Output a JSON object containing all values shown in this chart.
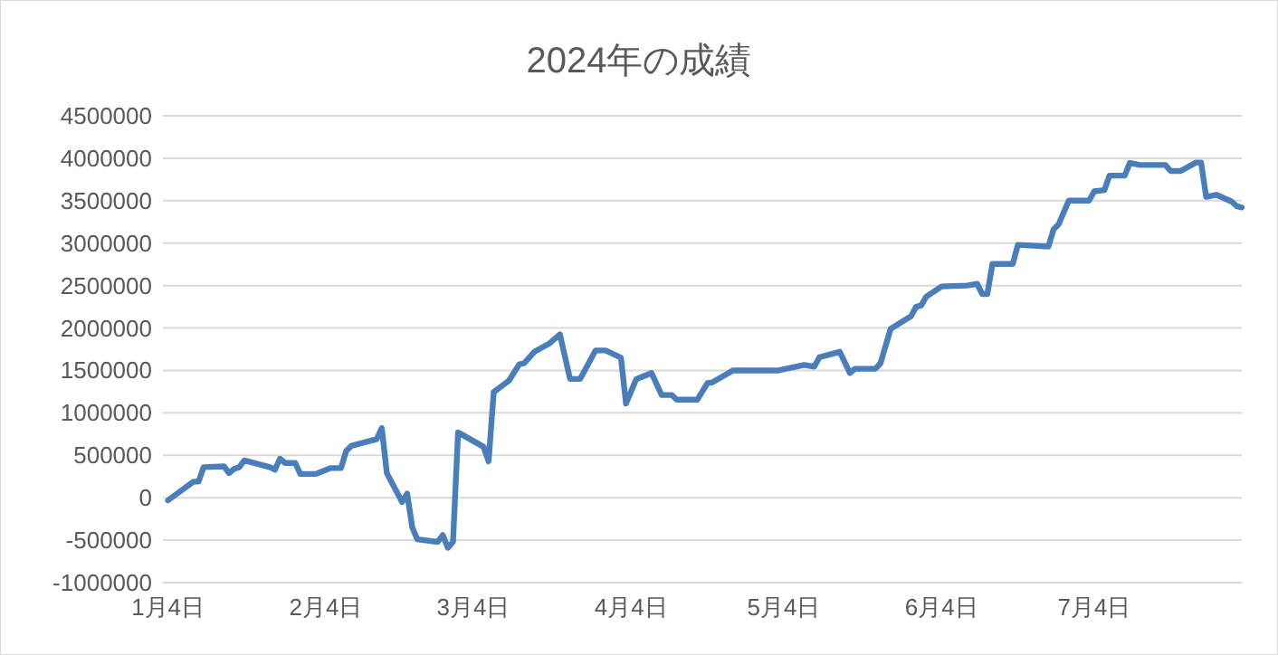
{
  "chart_data": {
    "type": "line",
    "title": "2024年の成績",
    "x": [
      "2024-01-04",
      "2024-01-09",
      "2024-01-10",
      "2024-01-11",
      "2024-01-15",
      "2024-01-16",
      "2024-01-17",
      "2024-01-18",
      "2024-01-19",
      "2024-01-24",
      "2024-01-25",
      "2024-01-26",
      "2024-01-27",
      "2024-01-29",
      "2024-01-30",
      "2024-02-02",
      "2024-02-05",
      "2024-02-07",
      "2024-02-08",
      "2024-02-09",
      "2024-02-14",
      "2024-02-15",
      "2024-02-16",
      "2024-02-19",
      "2024-02-20",
      "2024-02-21",
      "2024-02-22",
      "2024-02-26",
      "2024-02-27",
      "2024-02-28",
      "2024-02-29",
      "2024-03-01",
      "2024-03-06",
      "2024-03-07",
      "2024-03-08",
      "2024-03-11",
      "2024-03-13",
      "2024-03-14",
      "2024-03-16",
      "2024-03-19",
      "2024-03-21",
      "2024-03-23",
      "2024-03-25",
      "2024-03-28",
      "2024-03-30",
      "2024-04-02",
      "2024-04-03",
      "2024-04-05",
      "2024-04-08",
      "2024-04-10",
      "2024-04-12",
      "2024-04-13",
      "2024-04-17",
      "2024-04-19",
      "2024-04-20",
      "2024-04-24",
      "2024-05-03",
      "2024-05-08",
      "2024-05-10",
      "2024-05-11",
      "2024-05-15",
      "2024-05-17",
      "2024-05-18",
      "2024-05-22",
      "2024-05-23",
      "2024-05-25",
      "2024-05-29",
      "2024-05-30",
      "2024-05-31",
      "2024-06-01",
      "2024-06-04",
      "2024-06-09",
      "2024-06-11",
      "2024-06-12",
      "2024-06-13",
      "2024-06-14",
      "2024-06-18",
      "2024-06-19",
      "2024-06-25",
      "2024-06-26",
      "2024-06-27",
      "2024-06-29",
      "2024-07-03",
      "2024-07-04",
      "2024-07-06",
      "2024-07-07",
      "2024-07-10",
      "2024-07-11",
      "2024-07-13",
      "2024-07-18",
      "2024-07-19",
      "2024-07-21",
      "2024-07-24",
      "2024-07-25",
      "2024-07-26",
      "2024-07-28",
      "2024-07-31",
      "2024-08-01",
      "2024-08-02"
    ],
    "values": [
      -30000,
      190000,
      190000,
      360000,
      370000,
      290000,
      340000,
      360000,
      440000,
      360000,
      330000,
      460000,
      410000,
      410000,
      280000,
      280000,
      350000,
      350000,
      550000,
      610000,
      690000,
      820000,
      290000,
      -50000,
      50000,
      -350000,
      -490000,
      -520000,
      -440000,
      -590000,
      -520000,
      770000,
      600000,
      430000,
      1245000,
      1380000,
      1570000,
      1585000,
      1720000,
      1820000,
      1925000,
      1400000,
      1400000,
      1735000,
      1735000,
      1650000,
      1110000,
      1395000,
      1470000,
      1210000,
      1210000,
      1155000,
      1155000,
      1350000,
      1360000,
      1500000,
      1500000,
      1565000,
      1545000,
      1655000,
      1720000,
      1470000,
      1520000,
      1520000,
      1585000,
      1990000,
      2140000,
      2250000,
      2265000,
      2370000,
      2490000,
      2500000,
      2520000,
      2400000,
      2400000,
      2755000,
      2755000,
      2980000,
      2960000,
      3160000,
      3220000,
      3500000,
      3500000,
      3610000,
      3625000,
      3795000,
      3795000,
      3945000,
      3920000,
      3920000,
      3850000,
      3850000,
      3950000,
      3950000,
      3545000,
      3570000,
      3490000,
      3435000,
      3420000
    ],
    "color": "#4a7ebb",
    "xlim": [
      "2024-01-03",
      "2024-08-02"
    ],
    "xticks": [
      {
        "value": "2024-01-04",
        "label": "1月4日"
      },
      {
        "value": "2024-02-04",
        "label": "2月4日"
      },
      {
        "value": "2024-03-04",
        "label": "3月4日"
      },
      {
        "value": "2024-04-04",
        "label": "4月4日"
      },
      {
        "value": "2024-05-04",
        "label": "5月4日"
      },
      {
        "value": "2024-06-04",
        "label": "6月4日"
      },
      {
        "value": "2024-07-04",
        "label": "7月4日"
      }
    ],
    "ylim": [
      -1000000,
      4500000
    ],
    "yticks": [
      -1000000,
      -500000,
      0,
      500000,
      1000000,
      1500000,
      2000000,
      2500000,
      3000000,
      3500000,
      4000000,
      4500000
    ],
    "grid": "y"
  }
}
